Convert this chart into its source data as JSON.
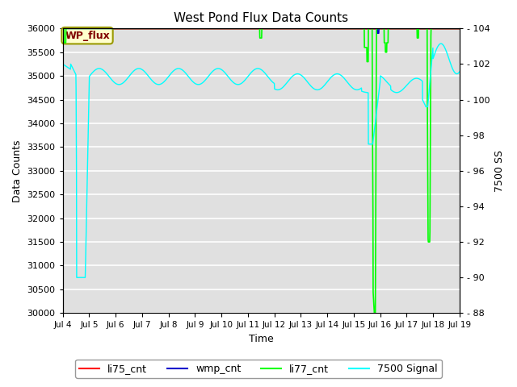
{
  "title": "West Pond Flux Data Counts",
  "xlabel": "Time",
  "ylabel_left": "Data Counts",
  "ylabel_right": "7500 SS",
  "ylim_left": [
    30000,
    36000
  ],
  "ylim_right": [
    88,
    104
  ],
  "yticks_left": [
    30000,
    30500,
    31000,
    31500,
    32000,
    32500,
    33000,
    33500,
    34000,
    34500,
    35000,
    35500,
    36000
  ],
  "yticks_right": [
    88,
    90,
    92,
    94,
    96,
    98,
    100,
    102,
    104
  ],
  "xtick_labels": [
    "Jul 4",
    "Jul 5",
    "Jul 6",
    "Jul 7",
    "Jul 8",
    "Jul 9",
    "Jul 10",
    "Jul 11",
    "Jul 12",
    "Jul 13",
    "Jul 14",
    "Jul 15",
    "Jul 16",
    "Jul 17",
    "Jul 18",
    "Jul 19"
  ],
  "wp_flux_label": "WP_flux",
  "wp_flux_box_facecolor": "#ffffcc",
  "wp_flux_text_color": "#800000",
  "wp_flux_edge_color": "#999900",
  "background_color": "#e0e0e0",
  "li77_color": "#00ff00",
  "li75_color": "#ff0000",
  "wmp_color": "#0000cc",
  "signal_color": "#00ffff",
  "legend_colors": {
    "li75_cnt": "#ff0000",
    "wmp_cnt": "#0000cc",
    "li77_cnt": "#00ff00",
    "7500 Signal": "#00ffff"
  }
}
